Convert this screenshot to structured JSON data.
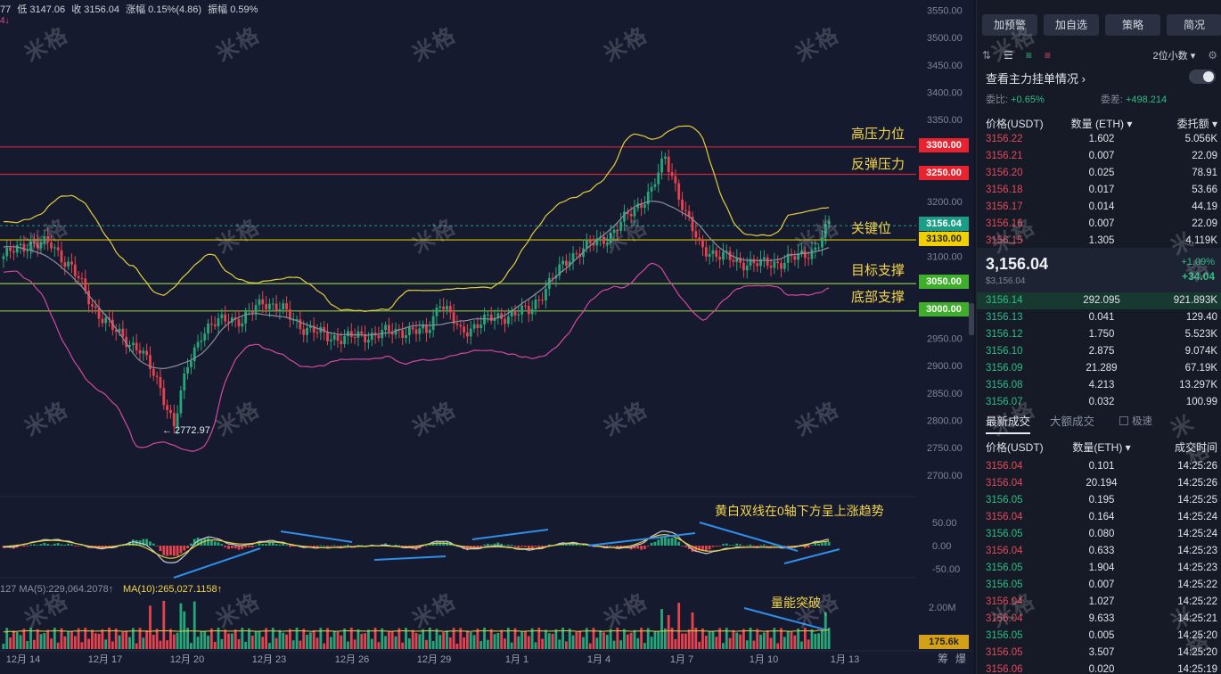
{
  "header": {
    "prefix": "77",
    "low": "低 3147.06",
    "close": "收 3156.04",
    "change": "涨幅 0.15%(4.86)",
    "amplitude": "振幅 0.59%",
    "sub": "4↓"
  },
  "price_axis": [
    "3550.00",
    "3500.00",
    "3450.00",
    "3400.00",
    "3350.00",
    "3300.00",
    "3250.00",
    "3200.00",
    "3150.00",
    "3100.00",
    "3050.00",
    "3000.00",
    "2950.00",
    "2900.00",
    "2850.00",
    "2800.00",
    "2750.00",
    "2700.00"
  ],
  "macd_axis": [
    "50.00",
    "0.00",
    "-50.00"
  ],
  "vol_axis": [
    "2.00M"
  ],
  "date_axis": [
    "12月 14",
    "12月 17",
    "12月 20",
    "12月 23",
    "12月 26",
    "12月 29",
    "1月 1",
    "1月 4",
    "1月 7",
    "1月 10",
    "1月 13"
  ],
  "bottom_right": [
    "筹",
    "爆"
  ],
  "price_tags": [
    {
      "label": "3300.00",
      "color": "#e8232f"
    },
    {
      "label": "3250.00",
      "color": "#e8232f"
    },
    {
      "label": "3156.04",
      "color": "#1a9e86"
    },
    {
      "label": "3130.00",
      "color": "#f0d000"
    },
    {
      "label": "3050.00",
      "color": "#3fae2a"
    },
    {
      "label": "3000.00",
      "color": "#3fae2a"
    }
  ],
  "vol_tag": "175.6k",
  "annotations": {
    "high_pressure": "高压力位",
    "rebound_pressure": "反弹压力",
    "key_level": "关键位",
    "target_support": "目标支撑",
    "bottom_support": "底部支撑",
    "macd_note": "黄白双线在0轴下方呈上涨趋势",
    "volume_note": "量能突破",
    "low_marker": "← 2772.97"
  },
  "ma_legend": {
    "ma5": "127  MA(5):229,064.2078↑",
    "ma10": "MA(10):265,027.1158↑"
  },
  "watermark": "米格",
  "side": {
    "buttons": [
      "加预警",
      "加自选",
      "策略",
      "简况"
    ],
    "decimals": "2位小数 ▾",
    "orderbook_title": "查看主力挂单情况 ›",
    "ratio_label": "委比:",
    "ratio_value": "+0.65%",
    "diff_label": "委差:",
    "diff_value": "+498.214",
    "ob_head": [
      "价格(USDT)",
      "数量 (ETH) ▾",
      "委托额 ▾"
    ],
    "asks": [
      [
        "3156.22",
        "1.602",
        "5.056K"
      ],
      [
        "3156.21",
        "0.007",
        "22.09"
      ],
      [
        "3156.20",
        "0.025",
        "78.91"
      ],
      [
        "3156.18",
        "0.017",
        "53.66"
      ],
      [
        "3156.17",
        "0.014",
        "44.19"
      ],
      [
        "3156.16",
        "0.007",
        "22.09"
      ],
      [
        "3156.15",
        "1.305",
        "4.119K"
      ]
    ],
    "last_price": "3,156.04",
    "last_price_sub": "$3,156.04",
    "chg_pct": "+1.09%",
    "chg_abs": "+34.04",
    "bids": [
      [
        "3156.14",
        "292.095",
        "921.893K"
      ],
      [
        "3156.13",
        "0.041",
        "129.40"
      ],
      [
        "3156.12",
        "1.750",
        "5.523K"
      ],
      [
        "3156.10",
        "2.875",
        "9.074K"
      ],
      [
        "3156.09",
        "21.289",
        "67.19K"
      ],
      [
        "3156.08",
        "4.213",
        "13.297K"
      ],
      [
        "3156.07",
        "0.032",
        "100.99"
      ]
    ],
    "tab_latest": "最新成交",
    "tab_large": "大额成交",
    "fast": "极速",
    "trade_head": [
      "价格(USDT)",
      "数量(ETH) ▾",
      "成交时间"
    ],
    "trades": [
      [
        "3156.04",
        "0.101",
        "14:25:26",
        "red"
      ],
      [
        "3156.04",
        "20.194",
        "14:25:26",
        "red"
      ],
      [
        "3156.05",
        "0.195",
        "14:25:25",
        "green"
      ],
      [
        "3156.04",
        "0.164",
        "14:25:24",
        "red"
      ],
      [
        "3156.05",
        "0.080",
        "14:25:24",
        "green"
      ],
      [
        "3156.04",
        "0.633",
        "14:25:23",
        "red"
      ],
      [
        "3156.05",
        "1.904",
        "14:25:23",
        "green"
      ],
      [
        "3156.05",
        "0.007",
        "14:25:22",
        "green"
      ],
      [
        "3156.04",
        "1.027",
        "14:25:22",
        "red"
      ],
      [
        "3156.04",
        "9.633",
        "14:25:21",
        "red"
      ],
      [
        "3156.05",
        "0.005",
        "14:25:20",
        "green"
      ],
      [
        "3156.05",
        "3.507",
        "14:25:20",
        "red"
      ],
      [
        "3156.06",
        "0.020",
        "14:25:19",
        "red"
      ]
    ]
  }
}
